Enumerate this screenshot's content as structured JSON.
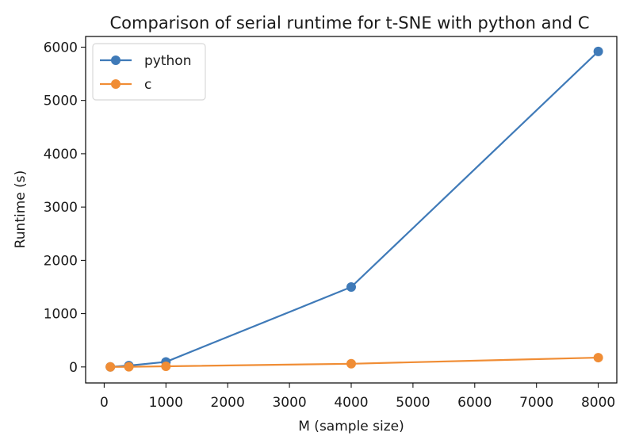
{
  "chart_data": {
    "type": "line",
    "title": "Comparison of serial runtime for t-SNE with python and C",
    "xlabel": "M (sample size)",
    "ylabel": "Runtime (s)",
    "xlim": [
      -300,
      8300
    ],
    "ylim": [
      -300,
      6200
    ],
    "xticks": [
      0,
      1000,
      2000,
      3000,
      4000,
      5000,
      6000,
      7000,
      8000
    ],
    "yticks": [
      0,
      1000,
      2000,
      3000,
      4000,
      5000,
      6000
    ],
    "grid": false,
    "legend_position": "top-left",
    "series": [
      {
        "name": "python",
        "color": "#3f7ab8",
        "x": [
          100,
          400,
          1000,
          4000,
          8000
        ],
        "y": [
          2,
          25,
          95,
          1500,
          5920
        ]
      },
      {
        "name": "c",
        "color": "#f08d35",
        "x": [
          100,
          400,
          1000,
          4000,
          8000
        ],
        "y": [
          1,
          3,
          12,
          60,
          175
        ]
      }
    ]
  }
}
